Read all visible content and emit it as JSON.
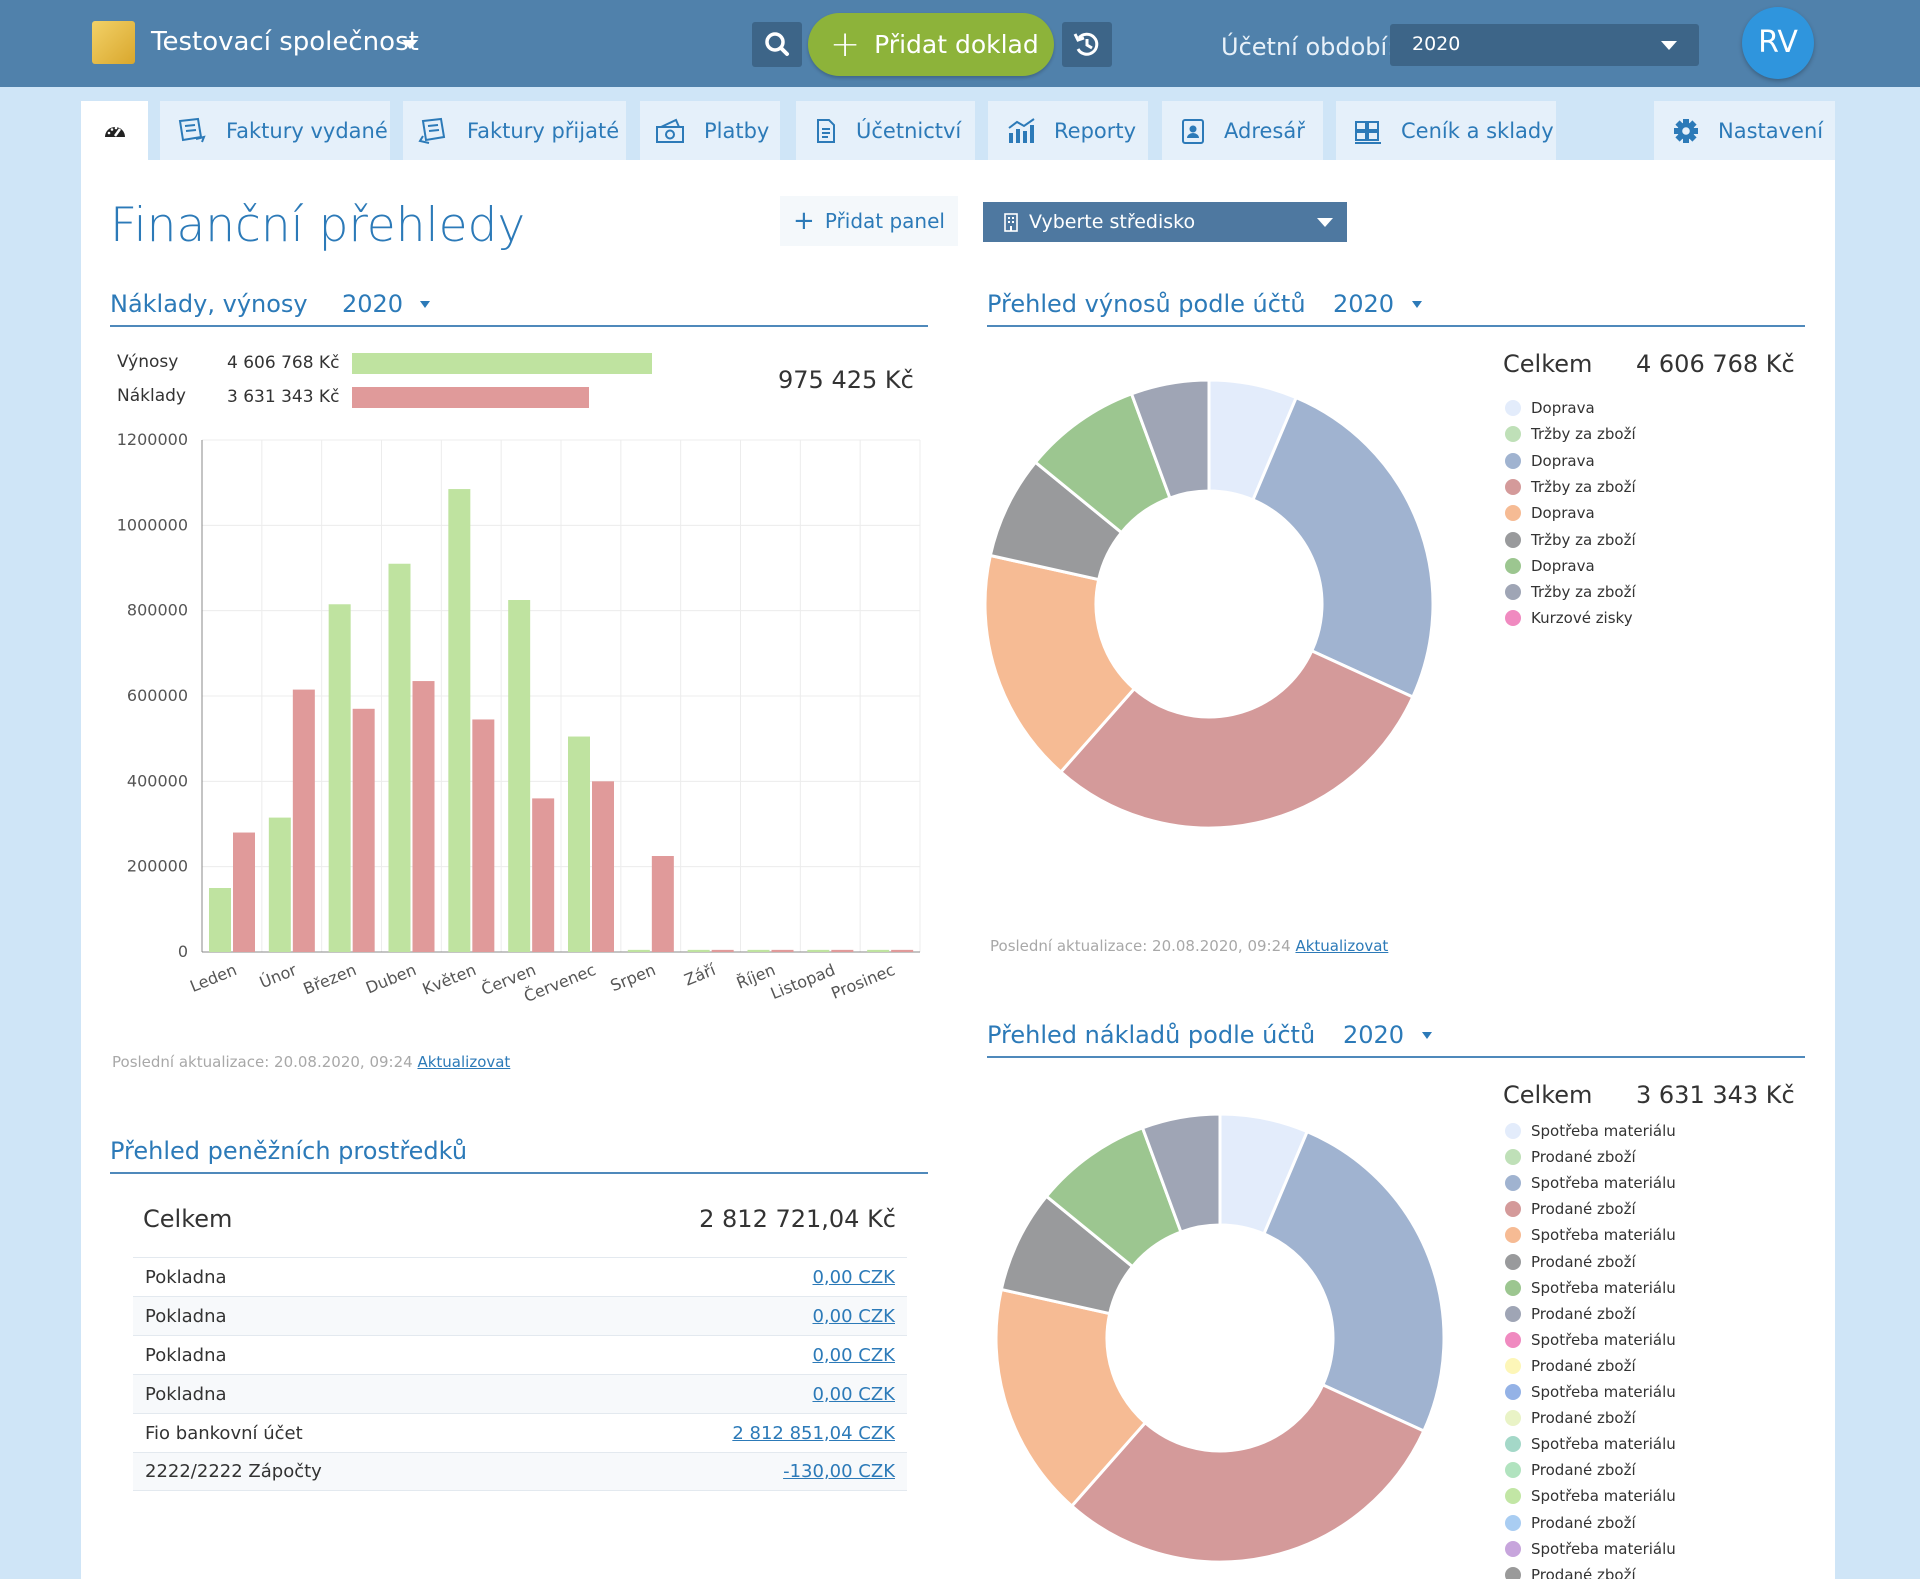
{
  "header": {
    "company": "Testovací společnost",
    "add_document": "Přidat doklad",
    "period_label": "Účetní období:",
    "period_value": "2020",
    "avatar": "RV"
  },
  "nav": {
    "tabs": [
      {
        "label": "",
        "icon": "dashboard-icon"
      },
      {
        "label": "Faktury vydané",
        "icon": "invoice-out-icon"
      },
      {
        "label": "Faktury přijaté",
        "icon": "invoice-in-icon"
      },
      {
        "label": "Platby",
        "icon": "payments-icon"
      },
      {
        "label": "Účetnictví",
        "icon": "document-icon"
      },
      {
        "label": "Reporty",
        "icon": "chart-icon"
      },
      {
        "label": "Adresář",
        "icon": "contact-icon"
      },
      {
        "label": "Ceník a sklady",
        "icon": "warehouse-icon"
      },
      {
        "label": "Nastavení",
        "icon": "gear-icon"
      }
    ]
  },
  "page": {
    "title": "Finanční přehledy",
    "add_panel": "Přidat panel",
    "center_select": "Vyberte středisko"
  },
  "costs_revenues": {
    "title": "Náklady, výnosy",
    "year": "2020",
    "revenue_label": "Výnosy",
    "revenue_value": "4 606 768 Kč",
    "cost_label": "Náklady",
    "cost_value": "3 631 343 Kč",
    "difference": "975 425 Kč",
    "update_text": "Poslední aktualizace: 20.08.2020, 09:24",
    "update_link": "Aktualizovat"
  },
  "revenue_accounts": {
    "title": "Přehled výnosů podle účtů",
    "year": "2020",
    "total_label": "Celkem",
    "total_value": "4 606 768 Kč",
    "update_text": "Poslední aktualizace: 20.08.2020, 09:24",
    "update_link": "Aktualizovat",
    "legend": [
      {
        "label": "Doprava",
        "color": "#e3ecfb"
      },
      {
        "label": "Tržby za zboží",
        "color": "#bfe0b8"
      },
      {
        "label": "Doprava",
        "color": "#a0b3d0"
      },
      {
        "label": "Tržby za zboží",
        "color": "#d49a9a"
      },
      {
        "label": "Doprava",
        "color": "#f6bb94"
      },
      {
        "label": "Tržby za zboží",
        "color": "#999a9c"
      },
      {
        "label": "Doprava",
        "color": "#9cc690"
      },
      {
        "label": "Tržby za zboží",
        "color": "#9fa5b5"
      },
      {
        "label": "Kurzové zisky",
        "color": "#f08ac0"
      }
    ]
  },
  "cost_accounts": {
    "title": "Přehled nákladů podle účtů",
    "year": "2020",
    "total_label": "Celkem",
    "total_value": "3 631 343 Kč",
    "legend": [
      {
        "label": "Spotřeba materiálu",
        "color": "#e3ecfb"
      },
      {
        "label": "Prodané zboží",
        "color": "#bfe0b8"
      },
      {
        "label": "Spotřeba materiálu",
        "color": "#a0b3d0"
      },
      {
        "label": "Prodané zboží",
        "color": "#d49a9a"
      },
      {
        "label": "Spotřeba materiálu",
        "color": "#f6bb94"
      },
      {
        "label": "Prodané zboží",
        "color": "#999a9c"
      },
      {
        "label": "Spotřeba materiálu",
        "color": "#9cc690"
      },
      {
        "label": "Prodané zboží",
        "color": "#9fa5b5"
      },
      {
        "label": "Spotřeba materiálu",
        "color": "#f08ac0"
      },
      {
        "label": "Prodané zboží",
        "color": "#fdf6b8"
      },
      {
        "label": "Spotřeba materiálu",
        "color": "#94b2e6"
      },
      {
        "label": "Prodané zboží",
        "color": "#e9f3c6"
      },
      {
        "label": "Spotřeba materiálu",
        "color": "#a4d8c8"
      },
      {
        "label": "Prodané zboží",
        "color": "#b1e3bf"
      },
      {
        "label": "Spotřeba materiálu",
        "color": "#c2e6a5"
      },
      {
        "label": "Prodané zboží",
        "color": "#a9cdf2"
      },
      {
        "label": "Spotřeba materiálu",
        "color": "#c7a5dc"
      },
      {
        "label": "Prodané zboží",
        "color": "#9a9a9a"
      }
    ]
  },
  "cash": {
    "title": "Přehled peněžních prostředků",
    "total_label": "Celkem",
    "total_value": "2 812 721,04 Kč",
    "rows": [
      {
        "name": "Pokladna",
        "value": "0,00 CZK"
      },
      {
        "name": "Pokladna",
        "value": "0,00 CZK"
      },
      {
        "name": "Pokladna",
        "value": "0,00 CZK"
      },
      {
        "name": "Pokladna",
        "value": "0,00 CZK"
      },
      {
        "name": "Fio bankovní účet",
        "value": "2 812 851,04 CZK"
      },
      {
        "name": "2222/2222 Zápočty",
        "value": "-130,00 CZK"
      }
    ]
  },
  "colors": {
    "revenue": "#bfe3a0",
    "cost": "#e09a9a",
    "accent": "#2c7ab8",
    "topbar": "#5081ab",
    "add_button": "#8db33a"
  },
  "chart_data": [
    {
      "type": "bar",
      "categories": [
        "Leden",
        "Únor",
        "Březen",
        "Duben",
        "Květen",
        "Červen",
        "Červenec",
        "Srpen",
        "Září",
        "Říjen",
        "Listopad",
        "Prosinec"
      ],
      "series": [
        {
          "name": "Výnosy",
          "values": [
            150000,
            315000,
            815000,
            910000,
            1085000,
            825000,
            505000,
            5000,
            5000,
            5000,
            5000,
            5000
          ]
        },
        {
          "name": "Náklady",
          "values": [
            280000,
            615000,
            570000,
            635000,
            545000,
            360000,
            400000,
            225000,
            5000,
            5000,
            5000,
            5000
          ]
        }
      ],
      "yticks": [
        "0",
        "200000",
        "400000",
        "600000",
        "800000",
        "1000000",
        "1200000"
      ],
      "ylim": [
        0,
        1200000
      ],
      "grid": true
    },
    {
      "type": "pie",
      "title": "Přehled výnosů podle účtů",
      "values": [
        6,
        24,
        28,
        16,
        7,
        8,
        5.3
      ],
      "colors": [
        "#e3ecfb",
        "#a0b3d0",
        "#d49a9a",
        "#f6bb94",
        "#999a9c",
        "#9cc690",
        "#9fa5b5"
      ]
    },
    {
      "type": "pie",
      "title": "Přehled nákladů podle účtů",
      "values": [
        6,
        24,
        28,
        16,
        7,
        8,
        5.3
      ],
      "colors": [
        "#e3ecfb",
        "#a0b3d0",
        "#d49a9a",
        "#f6bb94",
        "#999a9c",
        "#9cc690",
        "#9fa5b5"
      ]
    }
  ]
}
